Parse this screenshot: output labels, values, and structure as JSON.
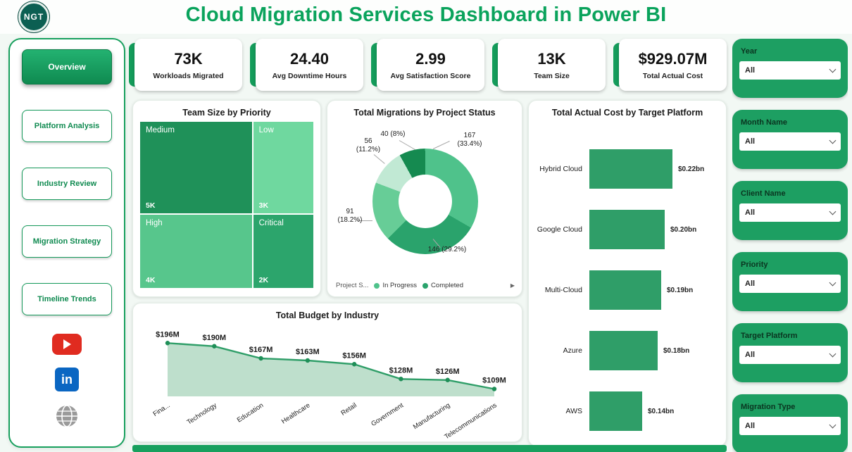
{
  "app": {
    "title": "Cloud Migration Services Dashboard in Power BI",
    "logo_text": "NGT"
  },
  "theme": {
    "primary_green": "#18a05e",
    "title_green": "#0aa35c",
    "kpi_accent": "#149d5b"
  },
  "sidebar": {
    "items": [
      {
        "label": "Overview",
        "active": true
      },
      {
        "label": "Platform Analysis",
        "active": false
      },
      {
        "label": "Industry Review",
        "active": false
      },
      {
        "label": "Migration Strategy",
        "active": false
      },
      {
        "label": "Timeline Trends",
        "active": false
      }
    ],
    "social": {
      "youtube": "YouTube",
      "linkedin": "in",
      "website": "Website"
    }
  },
  "kpis": [
    {
      "value": "73K",
      "label": "Workloads Migrated"
    },
    {
      "value": "24.40",
      "label": "Avg Downtime Hours"
    },
    {
      "value": "2.99",
      "label": "Avg Satisfaction Score"
    },
    {
      "value": "13K",
      "label": "Team Size"
    },
    {
      "value": "$929.07M",
      "label": "Total Actual Cost"
    }
  ],
  "slicers": [
    {
      "label": "Year",
      "value": "All"
    },
    {
      "label": "Month Name",
      "value": "All"
    },
    {
      "label": "Client Name",
      "value": "All"
    },
    {
      "label": "Priority",
      "value": "All"
    },
    {
      "label": "Target Platform",
      "value": "All"
    },
    {
      "label": "Migration Type",
      "value": "All"
    }
  ],
  "chart_data": [
    {
      "type": "treemap",
      "title": "Team Size by Priority",
      "items": [
        {
          "label": "Medium",
          "value": "5K",
          "color": "#1f9159"
        },
        {
          "label": "Low",
          "value": "3K",
          "color": "#6fd89f"
        },
        {
          "label": "High",
          "value": "4K",
          "color": "#57c68c"
        },
        {
          "label": "Critical",
          "value": "2K",
          "color": "#2ca56c"
        }
      ]
    },
    {
      "type": "pie",
      "title": "Total Migrations by Project Status",
      "segments": [
        {
          "value": 40,
          "pct": 8.0,
          "callout": "40 (8%)",
          "color": "#158a50"
        },
        {
          "value": 167,
          "pct": 33.4,
          "callout": "167 (33.4%)",
          "color": "#4fc28b"
        },
        {
          "value": 146,
          "pct": 29.2,
          "callout": "146 (29.2%)",
          "color": "#2aa36c"
        },
        {
          "value": 91,
          "pct": 18.2,
          "callout": "91 (18.2%)",
          "color": "#67cd97"
        },
        {
          "value": 56,
          "pct": 11.2,
          "callout": "56 (11.2%)",
          "color": "#c1e9d4"
        }
      ],
      "callouts": [
        {
          "l1": "40 (8%)",
          "l2": ""
        },
        {
          "l1": "167",
          "l2": "(33.4%)"
        },
        {
          "l1": "146 (29.2%)",
          "l2": ""
        },
        {
          "l1": "91",
          "l2": "(18.2%)"
        },
        {
          "l1": "56",
          "l2": "(11.2%)"
        }
      ],
      "legend_title": "Project S...",
      "legend": [
        {
          "label": "In Progress",
          "color": "#4fc28b"
        },
        {
          "label": "Completed",
          "color": "#2aa36c"
        }
      ],
      "legend_arrow": "▶"
    },
    {
      "type": "bar",
      "title": "Total Actual Cost by Target Platform",
      "categories": [
        "Hybrid Cloud",
        "Google Cloud",
        "Multi-Cloud",
        "Azure",
        "AWS"
      ],
      "values": [
        0.22,
        0.2,
        0.19,
        0.18,
        0.14
      ],
      "value_labels": [
        "$0.22bn",
        "$0.20bn",
        "$0.19bn",
        "$0.18bn",
        "$0.14bn"
      ],
      "bar_color": "#2f9e68",
      "xlim": [
        0,
        0.22
      ],
      "legend_position": "none"
    },
    {
      "type": "area",
      "title": "Total Budget by Industry",
      "categories": [
        "Fina...",
        "Technology",
        "Education",
        "Healthcare",
        "Retail",
        "Government",
        "Manufacturing",
        "Telecommunications"
      ],
      "values": [
        196,
        190,
        167,
        163,
        156,
        128,
        126,
        109
      ],
      "value_labels": [
        "$196M",
        "$190M",
        "$167M",
        "$163M",
        "$156M",
        "$128M",
        "$126M",
        "$109M"
      ],
      "line_color": "#2f9e68",
      "fill_color": "#b7dcc7",
      "ylim": [
        95,
        210
      ]
    }
  ]
}
